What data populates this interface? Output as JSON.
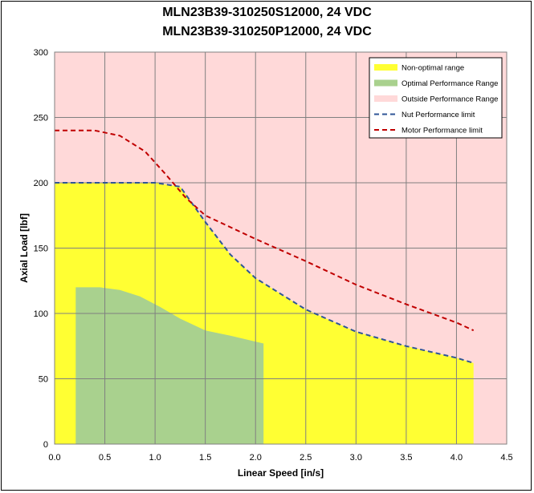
{
  "chart_title_line1": "MLN23B39-310250S12000, 24 VDC",
  "chart_title_line2": "MLN23B39-310250P12000, 24 VDC",
  "chart_data": {
    "type": "area",
    "xlabel": "Linear Speed [in/s]",
    "ylabel": "Axial Load [lbf]",
    "xlim": [
      0,
      4.5
    ],
    "ylim": [
      0,
      300
    ],
    "xticks": [
      0.0,
      0.5,
      1.0,
      1.5,
      2.0,
      2.5,
      3.0,
      3.5,
      4.0,
      4.5
    ],
    "yticks": [
      0,
      50,
      100,
      150,
      200,
      250,
      300
    ],
    "grid": true,
    "legend_position": "top-right",
    "series": [
      {
        "name": "Non-optimal range",
        "kind": "area",
        "color": "#ffff33",
        "x": [
          0.0,
          1.0,
          1.25,
          1.5,
          1.75,
          2.0,
          2.5,
          3.0,
          3.5,
          4.0,
          4.17,
          4.17
        ],
        "y": [
          200,
          200,
          197,
          170,
          145,
          127,
          103,
          86,
          75,
          66,
          62,
          0
        ]
      },
      {
        "name": "Optimal Performance Range",
        "kind": "area",
        "color": "#a9d18e",
        "x": [
          0.21,
          0.21,
          0.45,
          0.65,
          0.85,
          1.05,
          1.25,
          1.5,
          1.75,
          2.08,
          2.08
        ],
        "y": [
          0,
          120,
          120,
          118,
          113,
          105,
          96,
          87,
          83,
          77,
          0
        ]
      },
      {
        "name": "Outside Performance Range",
        "kind": "area",
        "color": "#ffd9d9"
      },
      {
        "name": "Nut Performance limit",
        "kind": "line",
        "dash": "dashed",
        "color": "#2f5597",
        "x": [
          0.0,
          1.0,
          1.25,
          1.5,
          1.75,
          2.0,
          2.5,
          3.0,
          3.5,
          4.0,
          4.17
        ],
        "y": [
          200,
          200,
          197,
          170,
          145,
          127,
          103,
          86,
          75,
          66,
          62
        ]
      },
      {
        "name": "Motor Performance limit",
        "kind": "line",
        "dash": "dashed",
        "color": "#c00000",
        "x": [
          0.0,
          0.4,
          0.65,
          0.9,
          1.1,
          1.3,
          1.5,
          2.0,
          2.5,
          3.0,
          3.5,
          4.0,
          4.17
        ],
        "y": [
          240,
          240,
          236,
          224,
          207,
          189,
          175,
          157,
          140,
          122,
          107,
          93,
          87
        ]
      }
    ]
  }
}
